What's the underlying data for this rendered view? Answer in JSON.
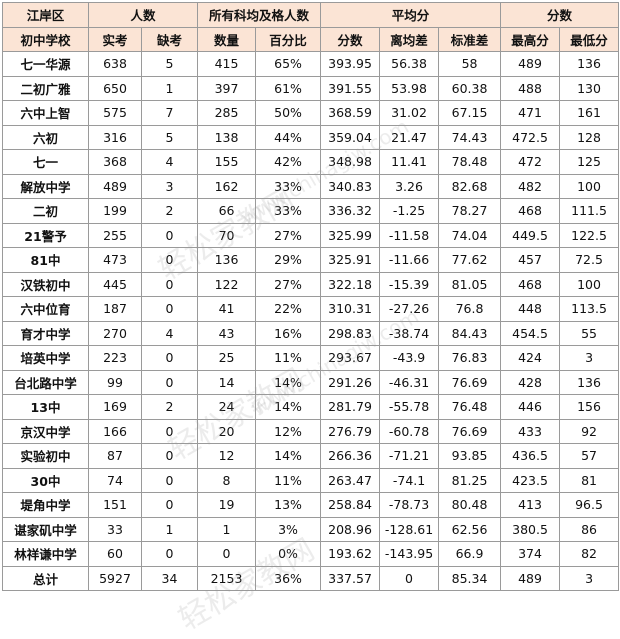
{
  "header_row1": [
    "江岸区",
    "人数",
    "所有科均及格人数",
    "平均分",
    "分数"
  ],
  "header_row2": [
    "初中学校",
    "实考",
    "缺考",
    "数量",
    "百分比",
    "分数",
    "离均差",
    "标准差",
    "最高分",
    "最低分"
  ],
  "rows": [
    [
      "七一华源",
      "638",
      "5",
      "415",
      "65%",
      "393.95",
      "56.38",
      "58",
      "489",
      "136"
    ],
    [
      "二初广雅",
      "650",
      "1",
      "397",
      "61%",
      "391.55",
      "53.98",
      "60.38",
      "488",
      "130"
    ],
    [
      "六中上智",
      "575",
      "7",
      "285",
      "50%",
      "368.59",
      "31.02",
      "67.15",
      "471",
      "161"
    ],
    [
      "六初",
      "316",
      "5",
      "138",
      "44%",
      "359.04",
      "21.47",
      "74.43",
      "472.5",
      "128"
    ],
    [
      "七一",
      "368",
      "4",
      "155",
      "42%",
      "348.98",
      "11.41",
      "78.48",
      "472",
      "125"
    ],
    [
      "解放中学",
      "489",
      "3",
      "162",
      "33%",
      "340.83",
      "3.26",
      "82.68",
      "482",
      "100"
    ],
    [
      "二初",
      "199",
      "2",
      "66",
      "33%",
      "336.32",
      "-1.25",
      "78.27",
      "468",
      "111.5"
    ],
    [
      "21警予",
      "255",
      "0",
      "70",
      "27%",
      "325.99",
      "-11.58",
      "74.04",
      "449.5",
      "122.5"
    ],
    [
      "81中",
      "473",
      "0",
      "136",
      "29%",
      "325.91",
      "-11.66",
      "77.62",
      "457",
      "72.5"
    ],
    [
      "汉铁初中",
      "445",
      "0",
      "122",
      "27%",
      "322.18",
      "-15.39",
      "81.05",
      "468",
      "100"
    ],
    [
      "六中位育",
      "187",
      "0",
      "41",
      "22%",
      "310.31",
      "-27.26",
      "76.8",
      "448",
      "113.5"
    ],
    [
      "育才中学",
      "270",
      "4",
      "43",
      "16%",
      "298.83",
      "-38.74",
      "84.43",
      "454.5",
      "55"
    ],
    [
      "培英中学",
      "223",
      "0",
      "25",
      "11%",
      "293.67",
      "-43.9",
      "76.83",
      "424",
      "3"
    ],
    [
      "台北路中学",
      "99",
      "0",
      "14",
      "14%",
      "291.26",
      "-46.31",
      "76.69",
      "428",
      "136"
    ],
    [
      "13中",
      "169",
      "2",
      "24",
      "14%",
      "281.79",
      "-55.78",
      "76.48",
      "446",
      "156"
    ],
    [
      "京汉中学",
      "166",
      "0",
      "20",
      "12%",
      "276.79",
      "-60.78",
      "76.69",
      "433",
      "92"
    ],
    [
      "实验初中",
      "87",
      "0",
      "12",
      "14%",
      "266.36",
      "-71.21",
      "93.85",
      "436.5",
      "57"
    ],
    [
      "30中",
      "74",
      "0",
      "8",
      "11%",
      "263.47",
      "-74.1",
      "81.25",
      "423.5",
      "81"
    ],
    [
      "堤角中学",
      "151",
      "0",
      "19",
      "13%",
      "258.84",
      "-78.73",
      "80.48",
      "413",
      "96.5"
    ],
    [
      "谌家矶中学",
      "33",
      "1",
      "1",
      "3%",
      "208.96",
      "-128.61",
      "62.56",
      "380.5",
      "86"
    ],
    [
      "林祥谦中学",
      "60",
      "0",
      "0",
      "0%",
      "193.62",
      "-143.95",
      "66.9",
      "374",
      "82"
    ]
  ],
  "total": [
    "总计",
    "5927",
    "34",
    "2153",
    "36%",
    "337.57",
    "0",
    "85.34",
    "489",
    "3"
  ],
  "watermarks": [
    "轻松家教网",
    "www.chinagjw.com"
  ]
}
